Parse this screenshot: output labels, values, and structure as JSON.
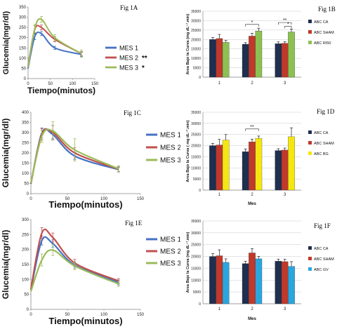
{
  "chart_data": [
    {
      "id": "A",
      "type": "line",
      "title": "Fig 1A",
      "xlabel": "Tiempo(minutos)",
      "ylabel": "Glucemia(mgr/dl)",
      "xlim": [
        0,
        150
      ],
      "ylim": [
        0,
        350
      ],
      "xticks": [
        0,
        50,
        100,
        150
      ],
      "yticks": [
        0,
        50,
        100,
        150,
        200,
        250,
        300,
        350
      ],
      "legend": "right",
      "x": [
        0,
        15,
        30,
        60,
        120
      ],
      "series": [
        {
          "name": "MES 1",
          "marker": "",
          "color": "#4472c4",
          "values": [
            50,
            205,
            220,
            150,
            118
          ],
          "err": [
            0,
            15,
            10,
            8,
            10
          ]
        },
        {
          "name": "MES 2",
          "marker": "**",
          "color": "#c0504d",
          "values": [
            62,
            240,
            250,
            192,
            122
          ],
          "err": [
            0,
            18,
            12,
            12,
            10
          ]
        },
        {
          "name": "MES 3",
          "marker": "*",
          "color": "#9bbb59",
          "values": [
            55,
            245,
            290,
            200,
            122
          ],
          "err": [
            0,
            20,
            14,
            15,
            18
          ]
        }
      ]
    },
    {
      "id": "C",
      "type": "line",
      "title": "Fig 1C",
      "xlabel": "Tiempo(minutos)",
      "ylabel": "Glucemia(mgr/dl)",
      "xlim": [
        0,
        150
      ],
      "ylim": [
        0,
        400
      ],
      "xticks": [
        0,
        50,
        100,
        150
      ],
      "yticks": [
        0,
        50,
        100,
        150,
        200,
        250,
        300,
        350,
        400
      ],
      "legend": "right",
      "x": [
        0,
        15,
        30,
        60,
        120
      ],
      "series": [
        {
          "name": "MES 1",
          "marker": "",
          "color": "#4472c4",
          "values": [
            48,
            298,
            290,
            185,
            118
          ],
          "err": [
            0,
            25,
            20,
            18,
            12
          ]
        },
        {
          "name": "MES 2",
          "marker": "",
          "color": "#c0504d",
          "values": [
            50,
            292,
            300,
            200,
            120
          ],
          "err": [
            0,
            28,
            35,
            25,
            12
          ]
        },
        {
          "name": "MES 3",
          "marker": "",
          "color": "#9bbb59",
          "values": [
            52,
            282,
            308,
            215,
            122
          ],
          "err": [
            0,
            30,
            45,
            55,
            15
          ]
        }
      ]
    },
    {
      "id": "E",
      "type": "line",
      "title": "Fig 1E",
      "xlabel": "Tiempo(minutos)",
      "ylabel": "Glucemia(mgr/dl)",
      "xlim": [
        0,
        150
      ],
      "ylim": [
        0,
        300
      ],
      "xticks": [
        0,
        50,
        100,
        150
      ],
      "yticks": [
        0,
        50,
        100,
        150,
        200,
        250,
        300
      ],
      "legend": "right",
      "x": [
        0,
        15,
        30,
        60,
        120
      ],
      "series": [
        {
          "name": "MES 1",
          "marker": "",
          "color": "#4472c4",
          "values": [
            65,
            230,
            220,
            148,
            90
          ],
          "err": [
            0,
            15,
            12,
            10,
            8
          ]
        },
        {
          "name": "MES 2",
          "marker": "",
          "color": "#c0504d",
          "values": [
            68,
            255,
            240,
            155,
            95
          ],
          "err": [
            0,
            18,
            15,
            12,
            8
          ]
        },
        {
          "name": "MES 3",
          "marker": "",
          "color": "#9bbb59",
          "values": [
            60,
            165,
            198,
            145,
            85
          ],
          "err": [
            0,
            20,
            18,
            12,
            8
          ]
        }
      ]
    },
    {
      "id": "B",
      "type": "bar",
      "title": "Fig 1B",
      "xlabel": "",
      "ylabel": "Area Bajo la Curva (mg dL⁻¹.min)",
      "ylim": [
        0,
        35000
      ],
      "yticks": [
        0,
        5000,
        10000,
        15000,
        20000,
        25000,
        30000,
        35000
      ],
      "legend": "right",
      "categories": [
        "1",
        "2",
        "3"
      ],
      "series": [
        {
          "name": "ABC CA",
          "color": "#1f2f4f",
          "values": [
            20000,
            17500,
            17800
          ],
          "err": [
            1000,
            800,
            900
          ]
        },
        {
          "name": "ABC SHAM",
          "color": "#c0392b",
          "values": [
            20500,
            21800,
            18000
          ],
          "err": [
            2200,
            1500,
            800
          ]
        },
        {
          "name": "ABC RI50",
          "color": "#8cc152",
          "values": [
            18500,
            24500,
            24000
          ],
          "err": [
            1000,
            1500,
            1500
          ]
        }
      ],
      "brackets": [
        {
          "cat": 1,
          "from": 0,
          "to": 2,
          "y": 28000,
          "label": "*"
        },
        {
          "cat": 2,
          "from": 0,
          "to": 2,
          "y": 29000,
          "label": "**"
        },
        {
          "cat": 2,
          "from": 1,
          "to": 2,
          "y": 27000,
          "label": "*"
        }
      ]
    },
    {
      "id": "D",
      "type": "bar",
      "title": "Fig 1D",
      "xlabel": "Mes",
      "ylabel": "Area Bajo la Curva ( mg dL⁻¹.min)",
      "ylim": [
        0,
        35000
      ],
      "yticks": [
        0,
        5000,
        10000,
        15000,
        20000,
        25000,
        30000,
        35000
      ],
      "legend": "right",
      "categories": [
        "1",
        "2",
        "3"
      ],
      "series": [
        {
          "name": "ABC CA",
          "color": "#1f2f4f",
          "values": [
            20000,
            17300,
            17800
          ],
          "err": [
            1000,
            1200,
            800
          ]
        },
        {
          "name": "ABC SHAM",
          "color": "#c0392b",
          "values": [
            20300,
            21700,
            18000
          ],
          "err": [
            2500,
            1200,
            900
          ]
        },
        {
          "name": "ABC BG",
          "color": "#f5e612",
          "values": [
            22500,
            23300,
            24000
          ],
          "err": [
            2500,
            1000,
            4000
          ]
        }
      ],
      "brackets": [
        {
          "cat": 1,
          "from": 0,
          "to": 2,
          "y": 27500,
          "label": "**"
        }
      ]
    },
    {
      "id": "F",
      "type": "bar",
      "title": "Fig 1F",
      "xlabel": "Mes",
      "ylabel": "Area Bajo la Curva (mg dL⁻¹.min)",
      "ylim": [
        0,
        35000
      ],
      "yticks": [
        0,
        5000,
        10000,
        15000,
        20000,
        25000,
        30000,
        35000
      ],
      "legend": "right",
      "categories": [
        "1",
        "2",
        "3"
      ],
      "series": [
        {
          "name": "ABC CA",
          "color": "#1f2f4f",
          "values": [
            20000,
            17000,
            18000
          ],
          "err": [
            1200,
            1000,
            800
          ]
        },
        {
          "name": "ABC SHAM",
          "color": "#c0392b",
          "values": [
            20300,
            21500,
            17800
          ],
          "err": [
            2500,
            1800,
            1000
          ]
        },
        {
          "name": "ABC GV",
          "color": "#2aa6de",
          "values": [
            17500,
            19000,
            15800
          ],
          "err": [
            1500,
            1000,
            2000
          ]
        }
      ],
      "brackets": []
    }
  ]
}
